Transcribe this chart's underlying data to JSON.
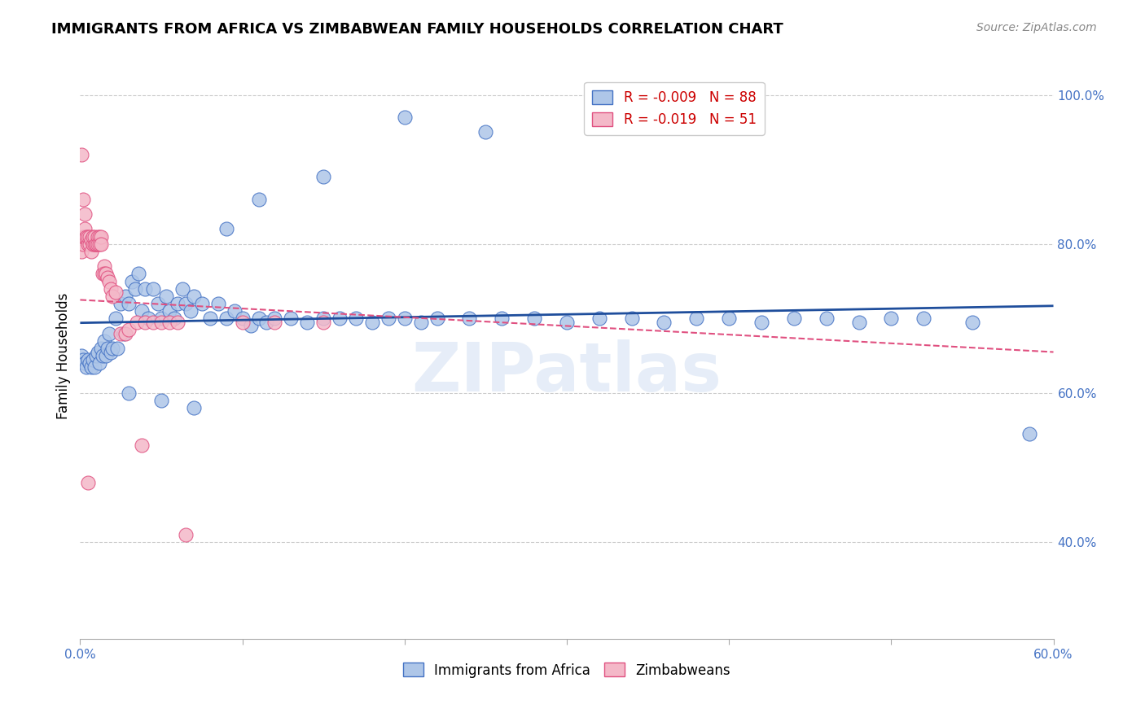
{
  "title": "IMMIGRANTS FROM AFRICA VS ZIMBABWEAN FAMILY HOUSEHOLDS CORRELATION CHART",
  "source": "Source: ZipAtlas.com",
  "ylabel": "Family Households",
  "xlim": [
    0.0,
    0.6
  ],
  "ylim": [
    0.27,
    1.03
  ],
  "ytick_vals": [
    0.4,
    0.6,
    0.8,
    1.0
  ],
  "ytick_labels": [
    "40.0%",
    "60.0%",
    "80.0%",
    "100.0%"
  ],
  "legend_blue_r": "-0.009",
  "legend_blue_n": "88",
  "legend_pink_r": "-0.019",
  "legend_pink_n": "51",
  "blue_color": "#aec6e8",
  "blue_edge_color": "#4472c4",
  "pink_color": "#f4b8c8",
  "pink_edge_color": "#e05080",
  "blue_line_color": "#1f4e9c",
  "pink_line_color": "#e05080",
  "watermark": "ZIPatlas",
  "blue_scatter_x": [
    0.001,
    0.002,
    0.003,
    0.004,
    0.005,
    0.006,
    0.007,
    0.008,
    0.009,
    0.01,
    0.011,
    0.012,
    0.013,
    0.014,
    0.015,
    0.016,
    0.017,
    0.018,
    0.019,
    0.02,
    0.022,
    0.023,
    0.025,
    0.027,
    0.028,
    0.03,
    0.032,
    0.034,
    0.036,
    0.038,
    0.04,
    0.042,
    0.045,
    0.048,
    0.05,
    0.053,
    0.055,
    0.058,
    0.06,
    0.063,
    0.065,
    0.068,
    0.07,
    0.075,
    0.08,
    0.085,
    0.09,
    0.095,
    0.1,
    0.105,
    0.11,
    0.115,
    0.12,
    0.13,
    0.14,
    0.15,
    0.16,
    0.17,
    0.18,
    0.19,
    0.2,
    0.21,
    0.22,
    0.24,
    0.26,
    0.28,
    0.3,
    0.32,
    0.34,
    0.36,
    0.38,
    0.4,
    0.42,
    0.44,
    0.46,
    0.48,
    0.5,
    0.52,
    0.55,
    0.585,
    0.03,
    0.05,
    0.07,
    0.09,
    0.11,
    0.15,
    0.2,
    0.25
  ],
  "blue_scatter_y": [
    0.65,
    0.645,
    0.64,
    0.635,
    0.645,
    0.64,
    0.635,
    0.645,
    0.635,
    0.65,
    0.655,
    0.64,
    0.66,
    0.65,
    0.67,
    0.65,
    0.66,
    0.68,
    0.655,
    0.66,
    0.7,
    0.66,
    0.72,
    0.68,
    0.73,
    0.72,
    0.75,
    0.74,
    0.76,
    0.71,
    0.74,
    0.7,
    0.74,
    0.72,
    0.7,
    0.73,
    0.71,
    0.7,
    0.72,
    0.74,
    0.72,
    0.71,
    0.73,
    0.72,
    0.7,
    0.72,
    0.7,
    0.71,
    0.7,
    0.69,
    0.7,
    0.695,
    0.7,
    0.7,
    0.695,
    0.7,
    0.7,
    0.7,
    0.695,
    0.7,
    0.7,
    0.695,
    0.7,
    0.7,
    0.7,
    0.7,
    0.695,
    0.7,
    0.7,
    0.695,
    0.7,
    0.7,
    0.695,
    0.7,
    0.7,
    0.695,
    0.7,
    0.7,
    0.695,
    0.545,
    0.6,
    0.59,
    0.58,
    0.82,
    0.86,
    0.89,
    0.97,
    0.95
  ],
  "pink_scatter_x": [
    0.001,
    0.002,
    0.002,
    0.003,
    0.003,
    0.004,
    0.005,
    0.005,
    0.006,
    0.006,
    0.007,
    0.007,
    0.008,
    0.008,
    0.009,
    0.009,
    0.01,
    0.01,
    0.011,
    0.011,
    0.012,
    0.012,
    0.013,
    0.013,
    0.014,
    0.015,
    0.015,
    0.016,
    0.017,
    0.018,
    0.019,
    0.02,
    0.022,
    0.025,
    0.028,
    0.03,
    0.035,
    0.038,
    0.04,
    0.045,
    0.05,
    0.055,
    0.06,
    0.065,
    0.1,
    0.12,
    0.15,
    0.001,
    0.002,
    0.003,
    0.005
  ],
  "pink_scatter_y": [
    0.79,
    0.8,
    0.81,
    0.81,
    0.82,
    0.81,
    0.8,
    0.81,
    0.8,
    0.81,
    0.805,
    0.79,
    0.8,
    0.81,
    0.8,
    0.81,
    0.8,
    0.8,
    0.81,
    0.8,
    0.81,
    0.8,
    0.81,
    0.8,
    0.76,
    0.77,
    0.76,
    0.76,
    0.755,
    0.75,
    0.74,
    0.73,
    0.735,
    0.68,
    0.68,
    0.685,
    0.695,
    0.53,
    0.695,
    0.695,
    0.695,
    0.695,
    0.695,
    0.41,
    0.695,
    0.695,
    0.695,
    0.92,
    0.86,
    0.84,
    0.48
  ]
}
